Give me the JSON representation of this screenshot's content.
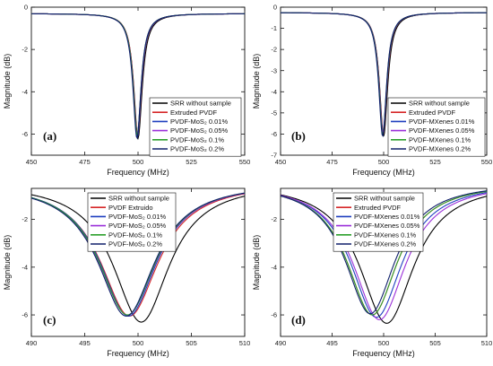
{
  "chart_data": [
    {
      "panel": "(a)",
      "type": "line",
      "xlabel": "Frequency (MHz)",
      "ylabel": "Magnitude (dB)",
      "xlim": [
        450,
        550
      ],
      "ylim": [
        -7,
        0
      ],
      "xticks": [
        450,
        475,
        500,
        525,
        550
      ],
      "yticks": [
        0,
        -2,
        -4,
        -6
      ],
      "legend_position": "bottom-right",
      "series": [
        {
          "name": "SRR without sample",
          "color": "#000000",
          "center": 500.0,
          "depth": -6.2,
          "width": 2.4,
          "baseline": -0.3
        },
        {
          "name": "Extruded PVDF",
          "color": "#d62728",
          "center": 499.8,
          "depth": -6.1,
          "width": 2.3,
          "baseline": -0.3
        },
        {
          "name": "PVDF-MoS₂ 0.01%",
          "color": "#1f3fbf",
          "center": 499.7,
          "depth": -6.15,
          "width": 2.3,
          "baseline": -0.3
        },
        {
          "name": "PVDF-MoS₂ 0.05%",
          "color": "#9b30d9",
          "center": 499.6,
          "depth": -6.0,
          "width": 2.35,
          "baseline": -0.3
        },
        {
          "name": "PVDF-MoS₂ 0.1%",
          "color": "#2ca02c",
          "center": 499.6,
          "depth": -6.05,
          "width": 2.3,
          "baseline": -0.3
        },
        {
          "name": "PVDF-MoS₂ 0.2%",
          "color": "#10206b",
          "center": 499.5,
          "depth": -6.2,
          "width": 2.3,
          "baseline": -0.3
        }
      ]
    },
    {
      "panel": "(b)",
      "type": "line",
      "xlabel": "Frequency (MHz)",
      "ylabel": "Magnitude (dB)",
      "xlim": [
        450,
        550
      ],
      "ylim": [
        -7,
        0
      ],
      "xticks": [
        450,
        475,
        500,
        525,
        550
      ],
      "yticks": [
        0,
        -1,
        -2,
        -3,
        -4,
        -5,
        -6,
        -7
      ],
      "legend_position": "bottom-right",
      "series": [
        {
          "name": "SRR without sample",
          "color": "#000000",
          "center": 500.0,
          "depth": -6.1,
          "width": 2.4,
          "baseline": -0.25
        },
        {
          "name": "Extruded PVDF",
          "color": "#d62728",
          "center": 499.8,
          "depth": -6.0,
          "width": 2.3,
          "baseline": -0.25
        },
        {
          "name": "PVDF-MXenes 0.01%",
          "color": "#1f3fbf",
          "center": 499.7,
          "depth": -6.0,
          "width": 2.3,
          "baseline": -0.25
        },
        {
          "name": "PVDF-MXenes 0.05%",
          "color": "#9b30d9",
          "center": 499.6,
          "depth": -5.95,
          "width": 2.35,
          "baseline": -0.25
        },
        {
          "name": "PVDF-MXenes 0.1%",
          "color": "#2ca02c",
          "center": 499.6,
          "depth": -6.05,
          "width": 2.3,
          "baseline": -0.25
        },
        {
          "name": "PVDF-MXenes 0.2%",
          "color": "#10206b",
          "center": 499.5,
          "depth": -6.1,
          "width": 2.3,
          "baseline": -0.25
        }
      ]
    },
    {
      "panel": "(c)",
      "type": "line",
      "xlabel": "Frequency (MHz)",
      "ylabel": "Magnitude (dB)",
      "xlim": [
        490,
        510
      ],
      "ylim": [
        -6.9,
        -0.7
      ],
      "xticks": [
        490,
        495,
        500,
        505,
        510
      ],
      "yticks": [
        -2,
        -4,
        -6
      ],
      "legend_position": "top-right",
      "series": [
        {
          "name": "SRR without sample",
          "color": "#000000",
          "center": 500.3,
          "depth": -6.3,
          "width": 3.2,
          "baseline": -0.45
        },
        {
          "name": "PVDF Extruido",
          "color": "#d62728",
          "center": 499.2,
          "depth": -6.05,
          "width": 3.3,
          "baseline": -0.45
        },
        {
          "name": "PVDF-MoS₂ 0.01%",
          "color": "#1f3fbf",
          "center": 499.1,
          "depth": -6.05,
          "width": 3.25,
          "baseline": -0.45
        },
        {
          "name": "PVDF-MoS₂ 0.05%",
          "color": "#9b30d9",
          "center": 499.0,
          "depth": -6.0,
          "width": 3.3,
          "baseline": -0.45
        },
        {
          "name": "PVDF-MoS₂ 0.1%",
          "color": "#2ca02c",
          "center": 499.0,
          "depth": -6.0,
          "width": 3.25,
          "baseline": -0.45
        },
        {
          "name": "PVDF-MoS₂ 0.2%",
          "color": "#10206b",
          "center": 498.9,
          "depth": -6.05,
          "width": 3.25,
          "baseline": -0.45
        }
      ]
    },
    {
      "panel": "(d)",
      "type": "line",
      "xlabel": "Frequency (MHz)",
      "ylabel": "Magnitude (dB)",
      "xlim": [
        490,
        510
      ],
      "ylim": [
        -6.9,
        -0.7
      ],
      "xticks": [
        490,
        495,
        500,
        505,
        510
      ],
      "yticks": [
        -2,
        -4,
        -6
      ],
      "legend_position": "top-right",
      "series": [
        {
          "name": "SRR without sample",
          "color": "#000000",
          "center": 500.3,
          "depth": -6.35,
          "width": 3.2,
          "baseline": -0.45
        },
        {
          "name": "Extruded PVDF",
          "color": "#d62728",
          "center": 498.9,
          "depth": -6.0,
          "width": 3.0,
          "baseline": -0.45
        },
        {
          "name": "PVDF-MXenes 0.01%",
          "color": "#1f3fbf",
          "center": 499.3,
          "depth": -6.1,
          "width": 3.05,
          "baseline": -0.45
        },
        {
          "name": "PVDF-MXenes 0.05%",
          "color": "#9b30d9",
          "center": 499.6,
          "depth": -6.2,
          "width": 3.1,
          "baseline": -0.45
        },
        {
          "name": "PVDF-MXenes 0.1%",
          "color": "#2ca02c",
          "center": 498.9,
          "depth": -6.0,
          "width": 3.0,
          "baseline": -0.45
        },
        {
          "name": "PVDF-MXenes 0.2%",
          "color": "#10206b",
          "center": 498.7,
          "depth": -5.95,
          "width": 2.95,
          "baseline": -0.45
        }
      ]
    }
  ]
}
